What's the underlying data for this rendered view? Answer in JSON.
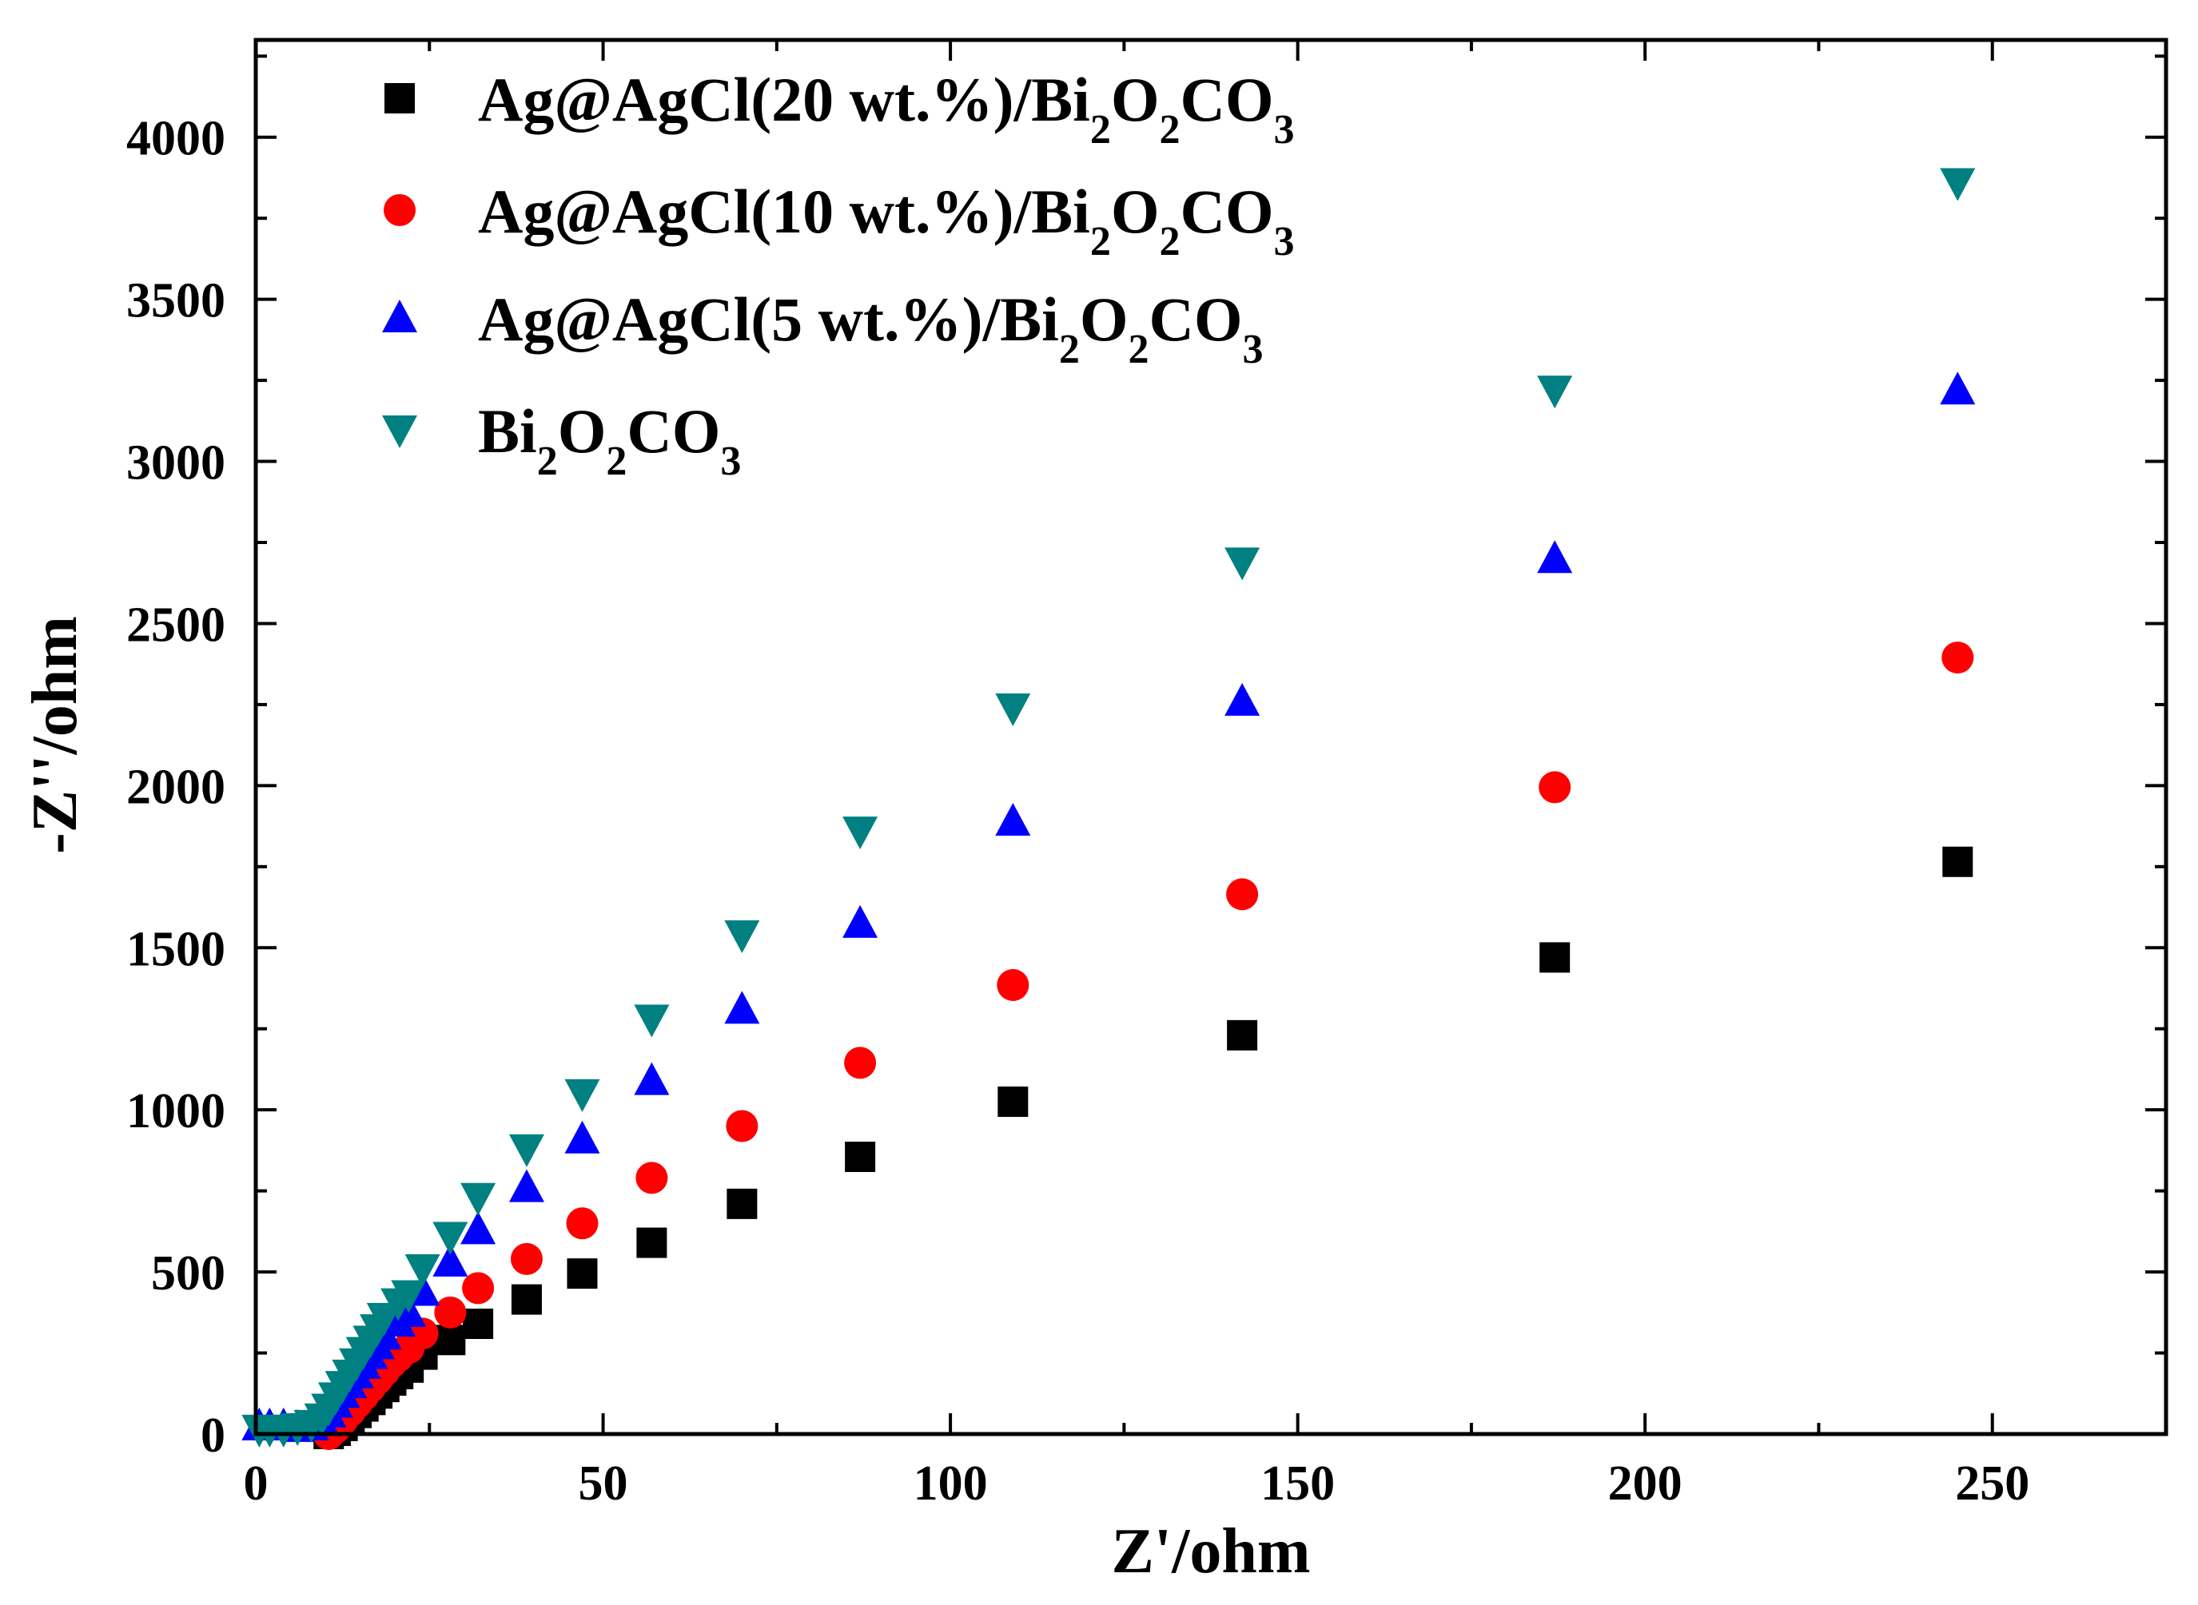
{
  "chart_data": {
    "type": "scatter",
    "xlabel": "Z'/ohm",
    "ylabel": "-Z''/ohm",
    "xlim": [
      0,
      275
    ],
    "ylim": [
      0,
      4300
    ],
    "x_ticks": [
      "0",
      "50",
      "100",
      "150",
      "200",
      "250"
    ],
    "y_ticks": [
      "0",
      "500",
      "1000",
      "1500",
      "2000",
      "2500",
      "3000",
      "3500",
      "4000"
    ],
    "x_tick_values": [
      0,
      50,
      100,
      150,
      200,
      250
    ],
    "y_tick_values": [
      0,
      500,
      1000,
      1500,
      2000,
      2500,
      3000,
      3500,
      4000
    ],
    "grid": false,
    "legend_position": "top-left",
    "series": [
      {
        "name": "Ag@AgCl(20 wt.%)/Bi2O2CO3",
        "legend_parts": [
          [
            "Ag@AgCl(20 wt.%)/Bi",
            false
          ],
          [
            "2",
            true
          ],
          [
            "O",
            false
          ],
          [
            "2",
            true
          ],
          [
            "CO",
            false
          ],
          [
            "3",
            true
          ]
        ],
        "marker": "square",
        "color": "#000000",
        "points": [
          [
            10.5,
            0
          ],
          [
            11.5,
            10
          ],
          [
            12.5,
            25
          ],
          [
            13.5,
            45
          ],
          [
            14.5,
            65
          ],
          [
            15.5,
            85
          ],
          [
            16.5,
            105
          ],
          [
            17.5,
            125
          ],
          [
            18.5,
            145
          ],
          [
            19.5,
            165
          ],
          [
            20.5,
            185
          ],
          [
            22,
            205
          ],
          [
            24,
            245
          ],
          [
            28,
            290
          ],
          [
            32,
            340
          ],
          [
            39,
            415
          ],
          [
            47,
            495
          ],
          [
            57,
            590
          ],
          [
            70,
            710
          ],
          [
            87,
            855
          ],
          [
            109,
            1025
          ],
          [
            142,
            1230
          ],
          [
            187,
            1470
          ],
          [
            245,
            1765
          ]
        ]
      },
      {
        "name": "Ag@AgCl(10 wt.%)/Bi2O2CO3",
        "legend_parts": [
          [
            "Ag@AgCl(10 wt.%)/Bi",
            false
          ],
          [
            "2",
            true
          ],
          [
            "O",
            false
          ],
          [
            "2",
            true
          ],
          [
            "CO",
            false
          ],
          [
            "3",
            true
          ]
        ],
        "marker": "circle",
        "color": "#ff0000",
        "points": [
          [
            10.5,
            0
          ],
          [
            11.5,
            20
          ],
          [
            12.5,
            45
          ],
          [
            13.5,
            70
          ],
          [
            14.5,
            95
          ],
          [
            15.5,
            120
          ],
          [
            16.5,
            145
          ],
          [
            17.5,
            170
          ],
          [
            18.5,
            195
          ],
          [
            19.5,
            220
          ],
          [
            20.5,
            240
          ],
          [
            22,
            265
          ],
          [
            24,
            310
          ],
          [
            28,
            375
          ],
          [
            32,
            450
          ],
          [
            39,
            540
          ],
          [
            47,
            650
          ],
          [
            57,
            790
          ],
          [
            70,
            950
          ],
          [
            87,
            1145
          ],
          [
            109,
            1385
          ],
          [
            142,
            1665
          ],
          [
            187,
            1995
          ],
          [
            245,
            2395
          ]
        ]
      },
      {
        "name": "Ag@AgCl(5 wt.%)/Bi2O2CO3",
        "legend_parts": [
          [
            "Ag@AgCl(5 wt.%)/Bi",
            false
          ],
          [
            "2",
            true
          ],
          [
            "O",
            false
          ],
          [
            "2",
            true
          ],
          [
            "CO",
            false
          ],
          [
            "3",
            true
          ]
        ],
        "marker": "triangle-up",
        "color": "#0000ff",
        "points": [
          [
            0.5,
            25
          ],
          [
            2,
            25
          ],
          [
            4,
            25
          ],
          [
            6,
            20
          ],
          [
            8,
            25
          ],
          [
            9.5,
            40
          ],
          [
            10.5,
            65
          ],
          [
            11.5,
            95
          ],
          [
            12.5,
            125
          ],
          [
            13.5,
            155
          ],
          [
            14.5,
            185
          ],
          [
            15.5,
            215
          ],
          [
            16.5,
            245
          ],
          [
            17.5,
            275
          ],
          [
            18.5,
            305
          ],
          [
            20.5,
            345
          ],
          [
            22,
            375
          ],
          [
            24,
            440
          ],
          [
            28,
            530
          ],
          [
            32,
            630
          ],
          [
            39,
            760
          ],
          [
            47,
            910
          ],
          [
            57,
            1090
          ],
          [
            70,
            1310
          ],
          [
            87,
            1575
          ],
          [
            109,
            1890
          ],
          [
            142,
            2260
          ],
          [
            187,
            2700
          ],
          [
            245,
            3220
          ]
        ]
      },
      {
        "name": "Bi2O2CO3",
        "legend_parts": [
          [
            "Bi",
            false
          ],
          [
            "2",
            true
          ],
          [
            "O",
            false
          ],
          [
            "2",
            true
          ],
          [
            "CO",
            false
          ],
          [
            "3",
            true
          ]
        ],
        "marker": "triangle-down",
        "color": "#008080",
        "points": [
          [
            0.5,
            15
          ],
          [
            2,
            15
          ],
          [
            4,
            15
          ],
          [
            6,
            20
          ],
          [
            8,
            30
          ],
          [
            9.5,
            50
          ],
          [
            10.5,
            80
          ],
          [
            11.5,
            115
          ],
          [
            12.5,
            150
          ],
          [
            13.5,
            185
          ],
          [
            14.5,
            220
          ],
          [
            15.5,
            255
          ],
          [
            16.5,
            290
          ],
          [
            17.5,
            325
          ],
          [
            18.5,
            360
          ],
          [
            20.5,
            405
          ],
          [
            22,
            430
          ],
          [
            24,
            510
          ],
          [
            28,
            610
          ],
          [
            32,
            730
          ],
          [
            39,
            880
          ],
          [
            47,
            1050
          ],
          [
            57,
            1280
          ],
          [
            70,
            1540
          ],
          [
            87,
            1860
          ],
          [
            109,
            2240
          ],
          [
            142,
            2690
          ],
          [
            187,
            3220
          ],
          [
            245,
            3860
          ]
        ]
      }
    ]
  }
}
